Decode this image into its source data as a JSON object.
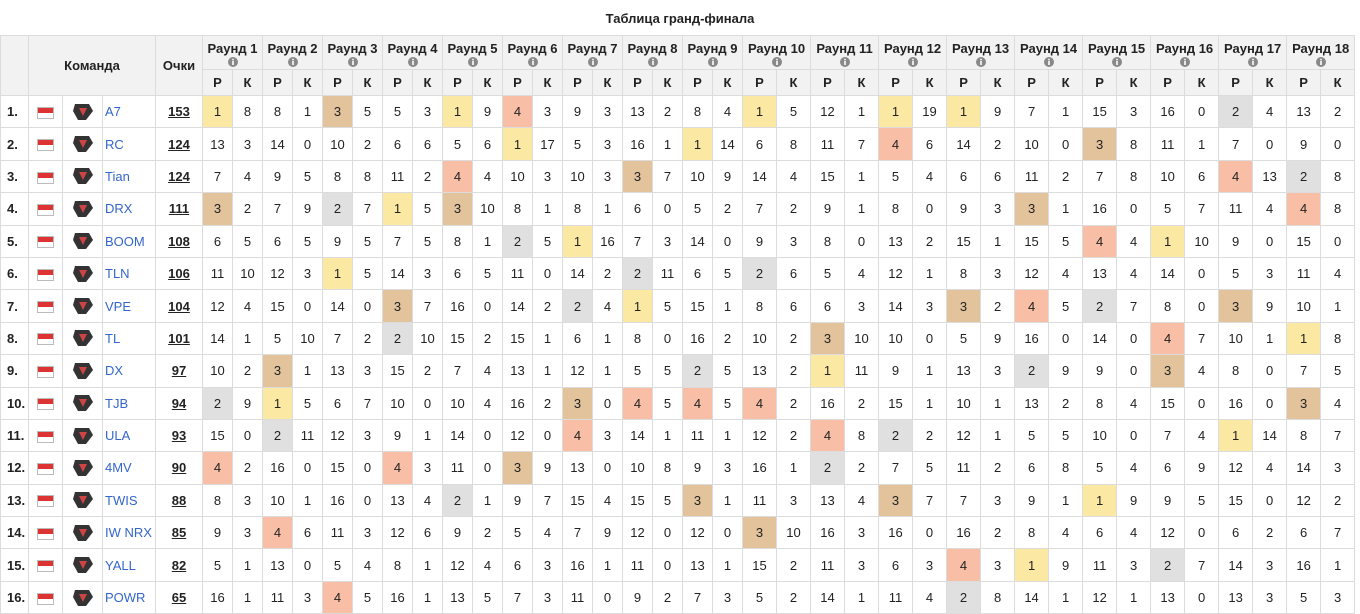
{
  "title": "Таблица гранд-финала",
  "header": {
    "team": "Команда",
    "points": "Очки",
    "place": "Р",
    "kills": "К",
    "rounds": [
      "Раунд 1",
      "Раунд 2",
      "Раунд 3",
      "Раунд 4",
      "Раунд 5",
      "Раунд 6",
      "Раунд 7",
      "Раунд 8",
      "Раунд 9",
      "Раунд 10",
      "Раунд 11",
      "Раунд 12",
      "Раунд 13",
      "Раунд 14",
      "Раунд 15",
      "Раунд 16",
      "Раунд 17",
      "Раунд 18"
    ]
  },
  "placement_colors": {
    "1": "#fbe8a2",
    "2": "#e0e0e0",
    "3": "#e2c39c",
    "4": "#f8bfa6"
  },
  "rows": [
    {
      "rank": "1.",
      "team": "A7",
      "points": 153,
      "results": [
        [
          1,
          8
        ],
        [
          8,
          1
        ],
        [
          3,
          5
        ],
        [
          5,
          3
        ],
        [
          1,
          9
        ],
        [
          4,
          3
        ],
        [
          9,
          3
        ],
        [
          13,
          2
        ],
        [
          8,
          4
        ],
        [
          1,
          5
        ],
        [
          12,
          1
        ],
        [
          1,
          19
        ],
        [
          1,
          9
        ],
        [
          7,
          1
        ],
        [
          15,
          3
        ],
        [
          16,
          0
        ],
        [
          2,
          4
        ],
        [
          13,
          2
        ]
      ]
    },
    {
      "rank": "2.",
      "team": "RC",
      "points": 124,
      "results": [
        [
          13,
          3
        ],
        [
          14,
          0
        ],
        [
          10,
          2
        ],
        [
          6,
          6
        ],
        [
          5,
          6
        ],
        [
          1,
          17
        ],
        [
          5,
          3
        ],
        [
          16,
          1
        ],
        [
          1,
          14
        ],
        [
          6,
          8
        ],
        [
          11,
          7
        ],
        [
          4,
          6
        ],
        [
          14,
          2
        ],
        [
          10,
          0
        ],
        [
          3,
          8
        ],
        [
          11,
          1
        ],
        [
          7,
          0
        ],
        [
          9,
          0
        ]
      ]
    },
    {
      "rank": "3.",
      "team": "Tian",
      "points": 124,
      "results": [
        [
          7,
          4
        ],
        [
          9,
          5
        ],
        [
          8,
          8
        ],
        [
          11,
          2
        ],
        [
          4,
          4
        ],
        [
          10,
          3
        ],
        [
          10,
          3
        ],
        [
          3,
          7
        ],
        [
          10,
          9
        ],
        [
          14,
          4
        ],
        [
          15,
          1
        ],
        [
          5,
          4
        ],
        [
          6,
          6
        ],
        [
          11,
          2
        ],
        [
          7,
          8
        ],
        [
          10,
          6
        ],
        [
          4,
          13
        ],
        [
          2,
          8
        ]
      ]
    },
    {
      "rank": "4.",
      "team": "DRX",
      "points": 111,
      "results": [
        [
          3,
          2
        ],
        [
          7,
          9
        ],
        [
          2,
          7
        ],
        [
          1,
          5
        ],
        [
          3,
          10
        ],
        [
          8,
          1
        ],
        [
          8,
          1
        ],
        [
          6,
          0
        ],
        [
          5,
          2
        ],
        [
          7,
          2
        ],
        [
          9,
          1
        ],
        [
          8,
          0
        ],
        [
          9,
          3
        ],
        [
          3,
          1
        ],
        [
          16,
          0
        ],
        [
          5,
          7
        ],
        [
          11,
          4
        ],
        [
          4,
          8
        ]
      ]
    },
    {
      "rank": "5.",
      "team": "BOOM",
      "points": 108,
      "results": [
        [
          6,
          5
        ],
        [
          6,
          5
        ],
        [
          9,
          5
        ],
        [
          7,
          5
        ],
        [
          8,
          1
        ],
        [
          2,
          5
        ],
        [
          1,
          16
        ],
        [
          7,
          3
        ],
        [
          14,
          0
        ],
        [
          9,
          3
        ],
        [
          8,
          0
        ],
        [
          13,
          2
        ],
        [
          15,
          1
        ],
        [
          15,
          5
        ],
        [
          4,
          4
        ],
        [
          1,
          10
        ],
        [
          9,
          0
        ],
        [
          15,
          0
        ]
      ]
    },
    {
      "rank": "6.",
      "team": "TLN",
      "points": 106,
      "results": [
        [
          11,
          10
        ],
        [
          12,
          3
        ],
        [
          1,
          5
        ],
        [
          14,
          3
        ],
        [
          6,
          5
        ],
        [
          11,
          0
        ],
        [
          14,
          2
        ],
        [
          2,
          11
        ],
        [
          6,
          5
        ],
        [
          2,
          6
        ],
        [
          5,
          4
        ],
        [
          12,
          1
        ],
        [
          8,
          3
        ],
        [
          12,
          4
        ],
        [
          13,
          4
        ],
        [
          14,
          0
        ],
        [
          5,
          3
        ],
        [
          11,
          4
        ]
      ]
    },
    {
      "rank": "7.",
      "team": "VPE",
      "points": 104,
      "results": [
        [
          12,
          4
        ],
        [
          15,
          0
        ],
        [
          14,
          0
        ],
        [
          3,
          7
        ],
        [
          16,
          0
        ],
        [
          14,
          2
        ],
        [
          2,
          4
        ],
        [
          1,
          5
        ],
        [
          15,
          1
        ],
        [
          8,
          6
        ],
        [
          6,
          3
        ],
        [
          14,
          3
        ],
        [
          3,
          2
        ],
        [
          4,
          5
        ],
        [
          2,
          7
        ],
        [
          8,
          0
        ],
        [
          3,
          9
        ],
        [
          10,
          1
        ]
      ]
    },
    {
      "rank": "8.",
      "team": "TL",
      "points": 101,
      "results": [
        [
          14,
          1
        ],
        [
          5,
          10
        ],
        [
          7,
          2
        ],
        [
          2,
          10
        ],
        [
          15,
          2
        ],
        [
          15,
          1
        ],
        [
          6,
          1
        ],
        [
          8,
          0
        ],
        [
          16,
          2
        ],
        [
          10,
          2
        ],
        [
          3,
          10
        ],
        [
          10,
          0
        ],
        [
          5,
          9
        ],
        [
          16,
          0
        ],
        [
          14,
          0
        ],
        [
          4,
          7
        ],
        [
          10,
          1
        ],
        [
          1,
          8
        ]
      ]
    },
    {
      "rank": "9.",
      "team": "DX",
      "points": 97,
      "results": [
        [
          10,
          2
        ],
        [
          3,
          1
        ],
        [
          13,
          3
        ],
        [
          15,
          2
        ],
        [
          7,
          4
        ],
        [
          13,
          1
        ],
        [
          12,
          1
        ],
        [
          5,
          5
        ],
        [
          2,
          5
        ],
        [
          13,
          2
        ],
        [
          1,
          11
        ],
        [
          9,
          1
        ],
        [
          13,
          3
        ],
        [
          2,
          9
        ],
        [
          9,
          0
        ],
        [
          3,
          4
        ],
        [
          8,
          0
        ],
        [
          7,
          5
        ]
      ]
    },
    {
      "rank": "10.",
      "team": "TJB",
      "points": 94,
      "results": [
        [
          2,
          9
        ],
        [
          1,
          5
        ],
        [
          6,
          7
        ],
        [
          10,
          0
        ],
        [
          10,
          4
        ],
        [
          16,
          2
        ],
        [
          3,
          0
        ],
        [
          4,
          5
        ],
        [
          4,
          5
        ],
        [
          4,
          2
        ],
        [
          16,
          2
        ],
        [
          15,
          1
        ],
        [
          10,
          1
        ],
        [
          13,
          2
        ],
        [
          8,
          4
        ],
        [
          15,
          0
        ],
        [
          16,
          0
        ],
        [
          3,
          4
        ]
      ]
    },
    {
      "rank": "11.",
      "team": "ULA",
      "points": 93,
      "results": [
        [
          15,
          0
        ],
        [
          2,
          11
        ],
        [
          12,
          3
        ],
        [
          9,
          1
        ],
        [
          14,
          0
        ],
        [
          12,
          0
        ],
        [
          4,
          3
        ],
        [
          14,
          1
        ],
        [
          11,
          1
        ],
        [
          12,
          2
        ],
        [
          4,
          8
        ],
        [
          2,
          2
        ],
        [
          12,
          1
        ],
        [
          5,
          5
        ],
        [
          10,
          0
        ],
        [
          7,
          4
        ],
        [
          1,
          14
        ],
        [
          8,
          7
        ]
      ]
    },
    {
      "rank": "12.",
      "team": "4MV",
      "points": 90,
      "results": [
        [
          4,
          2
        ],
        [
          16,
          0
        ],
        [
          15,
          0
        ],
        [
          4,
          3
        ],
        [
          11,
          0
        ],
        [
          3,
          9
        ],
        [
          13,
          0
        ],
        [
          10,
          8
        ],
        [
          9,
          3
        ],
        [
          16,
          1
        ],
        [
          2,
          2
        ],
        [
          7,
          5
        ],
        [
          11,
          2
        ],
        [
          6,
          8
        ],
        [
          5,
          4
        ],
        [
          6,
          9
        ],
        [
          12,
          4
        ],
        [
          14,
          3
        ]
      ]
    },
    {
      "rank": "13.",
      "team": "TWIS",
      "points": 88,
      "results": [
        [
          8,
          3
        ],
        [
          10,
          1
        ],
        [
          16,
          0
        ],
        [
          13,
          4
        ],
        [
          2,
          1
        ],
        [
          9,
          7
        ],
        [
          15,
          4
        ],
        [
          15,
          5
        ],
        [
          3,
          1
        ],
        [
          11,
          3
        ],
        [
          13,
          4
        ],
        [
          3,
          7
        ],
        [
          7,
          3
        ],
        [
          9,
          1
        ],
        [
          1,
          9
        ],
        [
          9,
          5
        ],
        [
          15,
          0
        ],
        [
          12,
          2
        ]
      ]
    },
    {
      "rank": "14.",
      "team": "IW NRX",
      "points": 85,
      "results": [
        [
          9,
          3
        ],
        [
          4,
          6
        ],
        [
          11,
          3
        ],
        [
          12,
          6
        ],
        [
          9,
          2
        ],
        [
          5,
          4
        ],
        [
          7,
          9
        ],
        [
          12,
          0
        ],
        [
          12,
          0
        ],
        [
          3,
          10
        ],
        [
          16,
          3
        ],
        [
          16,
          0
        ],
        [
          16,
          2
        ],
        [
          8,
          4
        ],
        [
          6,
          4
        ],
        [
          12,
          0
        ],
        [
          6,
          2
        ],
        [
          6,
          7
        ]
      ]
    },
    {
      "rank": "15.",
      "team": "YALL",
      "points": 82,
      "results": [
        [
          5,
          1
        ],
        [
          13,
          0
        ],
        [
          5,
          4
        ],
        [
          8,
          1
        ],
        [
          12,
          4
        ],
        [
          6,
          3
        ],
        [
          16,
          1
        ],
        [
          11,
          0
        ],
        [
          13,
          1
        ],
        [
          15,
          2
        ],
        [
          11,
          3
        ],
        [
          6,
          3
        ],
        [
          4,
          3
        ],
        [
          1,
          9
        ],
        [
          11,
          3
        ],
        [
          2,
          7
        ],
        [
          14,
          3
        ],
        [
          16,
          1
        ]
      ]
    },
    {
      "rank": "16.",
      "team": "POWR",
      "points": 65,
      "results": [
        [
          16,
          1
        ],
        [
          11,
          3
        ],
        [
          4,
          5
        ],
        [
          16,
          1
        ],
        [
          13,
          5
        ],
        [
          7,
          3
        ],
        [
          11,
          0
        ],
        [
          9,
          2
        ],
        [
          7,
          3
        ],
        [
          5,
          2
        ],
        [
          14,
          1
        ],
        [
          11,
          4
        ],
        [
          2,
          8
        ],
        [
          14,
          1
        ],
        [
          12,
          1
        ],
        [
          13,
          0
        ],
        [
          13,
          3
        ],
        [
          5,
          3
        ]
      ]
    }
  ]
}
